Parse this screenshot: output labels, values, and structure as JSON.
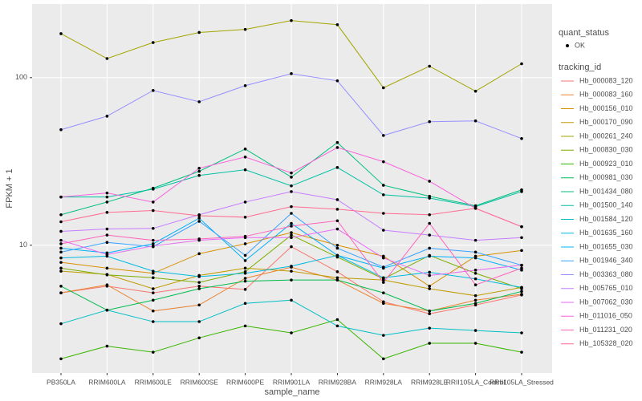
{
  "chart_data": {
    "type": "line",
    "x_label": "sample_name",
    "y_label": "FPKM + 1",
    "log_y": true,
    "grid": true,
    "categories": [
      "PB350LA",
      "RRIM600LA",
      "RRIM600LE",
      "RRIM600SE",
      "RRIM600PE",
      "RRIM901LA",
      "RRIM928BA",
      "RRIM928LA",
      "RRIM928LE",
      "RRII105LA_Control",
      "RRII105LA_Stressed"
    ],
    "ylim": [
      1.73,
      275
    ],
    "yticks": [
      10,
      100
    ],
    "shape_legend": {
      "title": "quant_status",
      "labels": [
        "OK"
      ]
    },
    "legend_title": "tracking_id",
    "series": [
      {
        "name": "Hb_000083_120",
        "color": "#F8766D",
        "values": [
          5.2,
          5.7,
          5.2,
          5.7,
          5.45,
          9.8,
          6.95,
          4.6,
          3.9,
          4.4,
          5.05
        ]
      },
      {
        "name": "Hb_000083_160",
        "color": "#EA8331",
        "values": [
          5.2,
          5.8,
          4.05,
          4.4,
          6.35,
          7.4,
          6.2,
          4.5,
          4.05,
          4.7,
          5.1
        ]
      },
      {
        "name": "Hb_000156_010",
        "color": "#D89000",
        "values": [
          7.9,
          7.3,
          6.8,
          8.9,
          10.2,
          11.9,
          10.0,
          8.6,
          5.7,
          8.6,
          9.3
        ]
      },
      {
        "name": "Hb_000170_090",
        "color": "#C09B00",
        "values": [
          7.0,
          6.7,
          5.5,
          6.6,
          7.3,
          7.0,
          6.4,
          6.2,
          5.5,
          5.0,
          5.6
        ]
      },
      {
        "name": "Hb_000261_240",
        "color": "#A3A500",
        "values": [
          183,
          130,
          162,
          186,
          194,
          219,
          207,
          87,
          117,
          83,
          121
        ]
      },
      {
        "name": "Hb_000830_030",
        "color": "#7CAE00",
        "values": [
          7.3,
          6.65,
          6.4,
          6.0,
          6.95,
          11.5,
          8.5,
          6.3,
          8.7,
          6.8,
          5.5
        ]
      },
      {
        "name": "Hb_000923_010",
        "color": "#39B600",
        "values": [
          2.1,
          2.5,
          2.3,
          2.8,
          3.3,
          3.0,
          3.6,
          2.1,
          2.6,
          2.6,
          2.3
        ]
      },
      {
        "name": "Hb_000981_030",
        "color": "#00BB4E",
        "values": [
          5.7,
          4.1,
          4.7,
          5.5,
          6.1,
          6.2,
          6.2,
          5.2,
          4.05,
          4.5,
          5.3
        ]
      },
      {
        "name": "Hb_001434_080",
        "color": "#00BF7D",
        "values": [
          15.2,
          18.1,
          21.9,
          27.6,
          37.5,
          25.5,
          41.0,
          22.8,
          19.6,
          17.2,
          21.4
        ]
      },
      {
        "name": "Hb_001500_140",
        "color": "#00C1A3",
        "values": [
          19.4,
          19.4,
          21.6,
          26.1,
          28.2,
          22.6,
          29.1,
          20.0,
          19.1,
          17.0,
          20.9
        ]
      },
      {
        "name": "Hb_001584_120",
        "color": "#00BFC4",
        "values": [
          3.4,
          4.1,
          3.5,
          3.5,
          4.5,
          4.7,
          3.3,
          2.9,
          3.2,
          3.1,
          3.0
        ]
      },
      {
        "name": "Hb_001635_160",
        "color": "#00BAE0",
        "values": [
          8.4,
          8.6,
          7.0,
          6.5,
          6.8,
          7.5,
          8.7,
          6.4,
          6.9,
          6.3,
          5.6
        ]
      },
      {
        "name": "Hb_001655_030",
        "color": "#00B0F6",
        "values": [
          9.6,
          9.0,
          10.2,
          14.5,
          8.1,
          13.5,
          8.7,
          7.3,
          8.6,
          8.4,
          7.1
        ]
      },
      {
        "name": "Hb_001946_340",
        "color": "#35A2FF",
        "values": [
          9.1,
          10.4,
          9.8,
          13.9,
          8.7,
          15.5,
          9.6,
          7.4,
          9.6,
          9.1,
          7.6
        ]
      },
      {
        "name": "Hb_003363_080",
        "color": "#9590FF",
        "values": [
          48.9,
          58.9,
          83.8,
          71.8,
          89.6,
          105.6,
          95.7,
          45.2,
          54.6,
          55.2,
          43.3
        ]
      },
      {
        "name": "Hb_005765_010",
        "color": "#C77CFF",
        "values": [
          12.1,
          12.5,
          12.6,
          15.2,
          18.1,
          20.9,
          18.7,
          12.3,
          11.5,
          10.7,
          11.1
        ]
      },
      {
        "name": "Hb_007062_030",
        "color": "#E76BF3",
        "values": [
          10.7,
          8.8,
          9.9,
          10.7,
          11.1,
          11.1,
          12.5,
          8.4,
          6.6,
          7.1,
          7.6
        ]
      },
      {
        "name": "Hb_011016_050",
        "color": "#FA62DB",
        "values": [
          19.4,
          20.5,
          18.1,
          28.8,
          33.6,
          27.0,
          38.3,
          31.5,
          24.1,
          16.6,
          12.9
        ]
      },
      {
        "name": "Hb_011231_020",
        "color": "#FF62BC",
        "values": [
          10.2,
          11.5,
          10.7,
          10.9,
          11.3,
          13.0,
          14.0,
          6.0,
          13.5,
          5.8,
          7.3
        ]
      },
      {
        "name": "Hb_105328_020",
        "color": "#FF6C91",
        "values": [
          13.8,
          15.7,
          16.1,
          15.0,
          14.7,
          17.0,
          16.4,
          15.5,
          15.2,
          16.6,
          12.9
        ]
      }
    ]
  }
}
